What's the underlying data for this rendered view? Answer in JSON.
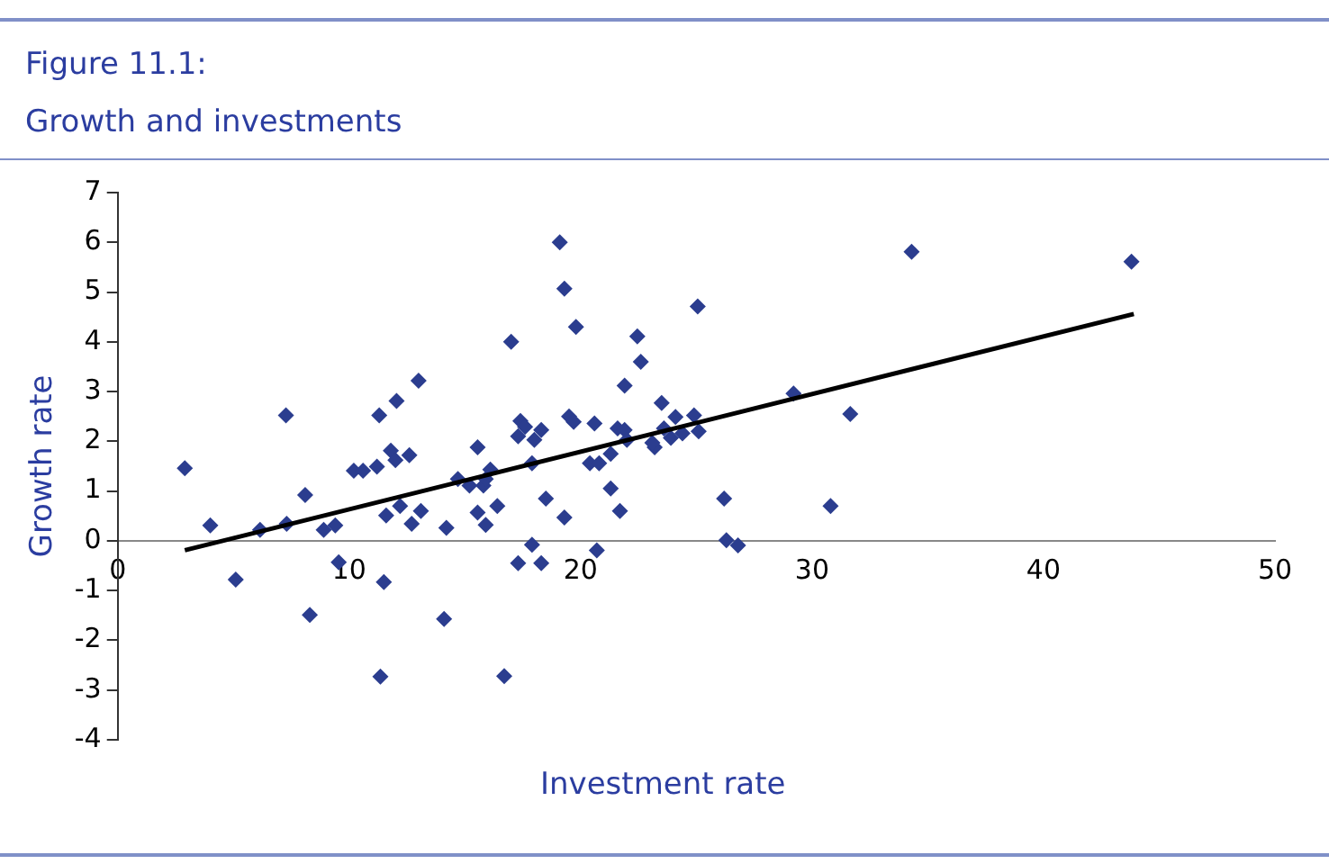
{
  "chart_data": {
    "type": "scatter",
    "title": "Figure 11.1:",
    "subtitle": "Growth and investments",
    "xlabel": "Investment rate",
    "ylabel": "Growth rate",
    "xlim": [
      0,
      50
    ],
    "xticks": [
      0,
      10,
      20,
      30,
      40,
      50
    ],
    "ylim": [
      -4,
      7
    ],
    "yticks": [
      -4,
      -3,
      -2,
      -1,
      0,
      1,
      2,
      3,
      4,
      5,
      6,
      7
    ],
    "grid": false,
    "legend": false,
    "marker": "diamond",
    "series": [
      {
        "type": "scatter",
        "color": "#2b3d8f",
        "x": [
          2.9,
          4.0,
          5.1,
          6.15,
          7.27,
          7.3,
          8.1,
          8.3,
          8.9,
          9.4,
          9.55,
          10.2,
          10.6,
          11.2,
          11.3,
          11.6,
          11.5,
          11.35,
          12.05,
          11.8,
          12.0,
          12.6,
          12.2,
          12.7,
          13.0,
          13.1,
          19.1,
          19.3,
          19.8,
          17.0,
          25.06,
          22.45,
          22.6,
          21.9,
          23.5,
          19.5,
          19.7,
          20.6,
          17.4,
          17.3,
          17.6,
          18.0,
          18.3,
          21.6,
          21.9,
          22.0,
          21.3,
          20.4,
          20.8,
          23.2,
          23.6,
          24.1,
          24.9,
          25.1,
          23.9,
          24.4,
          23.1,
          15.55,
          17.9,
          16.1,
          14.7,
          15.2,
          15.8,
          15.9,
          15.55,
          15.9,
          16.4,
          18.5,
          19.3,
          21.3,
          21.7,
          14.2,
          17.9,
          17.3,
          18.3,
          20.7,
          14.1,
          16.7,
          34.3,
          43.8,
          29.2,
          31.65,
          26.2,
          30.8,
          26.3,
          26.8
        ],
        "values": [
          1.46,
          0.31,
          -0.78,
          0.22,
          2.52,
          0.34,
          0.92,
          -1.49,
          0.22,
          0.31,
          -0.43,
          1.41,
          1.41,
          1.49,
          2.52,
          0.51,
          -0.83,
          -2.73,
          2.81,
          1.81,
          1.62,
          1.72,
          0.7,
          0.34,
          3.22,
          0.6,
          6.0,
          5.07,
          4.3,
          4.0,
          4.71,
          4.11,
          3.6,
          3.12,
          2.77,
          2.5,
          2.39,
          2.36,
          2.41,
          2.1,
          2.29,
          2.03,
          2.23,
          2.26,
          2.23,
          2.03,
          1.75,
          1.56,
          1.56,
          1.88,
          2.26,
          2.49,
          2.52,
          2.2,
          2.07,
          2.16,
          1.97,
          1.88,
          1.56,
          1.43,
          1.24,
          1.11,
          1.11,
          1.24,
          0.57,
          0.32,
          0.7,
          0.85,
          0.47,
          1.05,
          0.6,
          0.26,
          -0.08,
          -0.45,
          -0.45,
          -0.19,
          -1.57,
          -2.72,
          5.81,
          5.61,
          2.96,
          2.55,
          0.85,
          0.7,
          0.01,
          -0.09
        ]
      },
      {
        "type": "line",
        "color": "#000000",
        "marker": "none",
        "line_style": "solid",
        "x": [
          2.9,
          43.9
        ],
        "values": [
          -0.19,
          4.56
        ]
      }
    ]
  }
}
